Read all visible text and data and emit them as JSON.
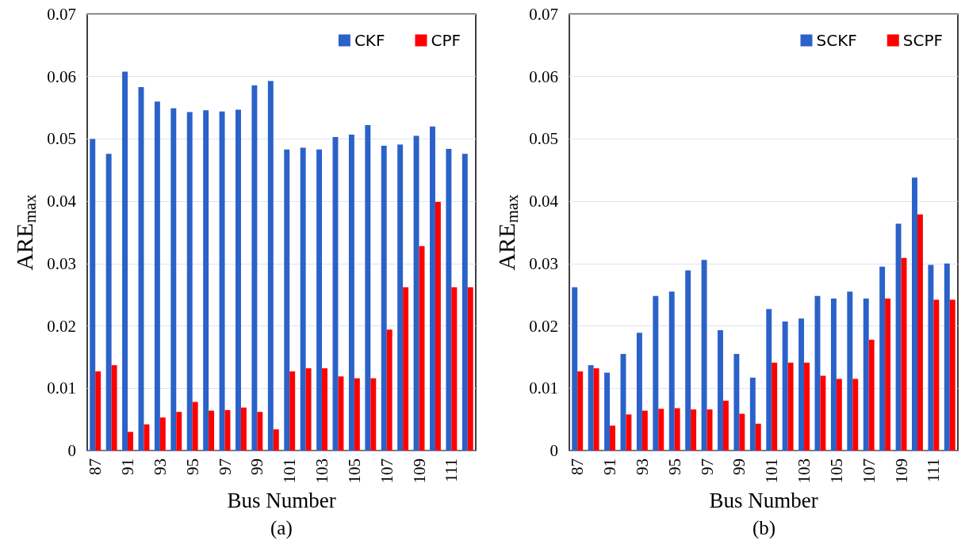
{
  "chart_data": [
    {
      "type": "bar",
      "categories": [
        "87",
        null,
        "91",
        null,
        "93",
        null,
        "95",
        null,
        "97",
        null,
        "99",
        null,
        "101",
        null,
        "103",
        null,
        "105",
        null,
        "107",
        null,
        "109",
        null,
        "111",
        null
      ],
      "series": [
        {
          "name": "CKF",
          "color": "#2b62c9",
          "values": [
            0.05,
            0.0476,
            0.0608,
            0.0583,
            0.056,
            0.0549,
            0.0543,
            0.0546,
            0.0544,
            0.0547,
            0.0586,
            0.0593,
            0.0483,
            0.0486,
            0.0483,
            0.0503,
            0.0507,
            0.0522,
            0.0489,
            0.0491,
            0.0505,
            0.052,
            0.0484,
            0.0476
          ]
        },
        {
          "name": "CPF",
          "color": "#ff0000",
          "values": [
            0.0127,
            0.0137,
            0.003,
            0.0042,
            0.0053,
            0.0062,
            0.0078,
            0.0064,
            0.0065,
            0.0069,
            0.0062,
            0.0034,
            0.0127,
            0.0132,
            0.0132,
            0.0119,
            0.0116,
            0.0116,
            0.0194,
            0.0262,
            0.0328,
            0.0399,
            0.0262,
            0.0262
          ]
        }
      ],
      "xlabel": "Bus Number",
      "ylabel": "ARE$_{max}$",
      "ylim": [
        0,
        0.07
      ],
      "yticks": [
        0,
        0.01,
        0.02,
        0.03,
        0.04,
        0.05,
        0.06,
        0.07
      ],
      "grid": "y",
      "legend": "top right",
      "annotations": [
        "(a)"
      ]
    },
    {
      "type": "bar",
      "categories": [
        "87",
        null,
        "91",
        null,
        "93",
        null,
        "95",
        null,
        "97",
        null,
        "99",
        null,
        "101",
        null,
        "103",
        null,
        "105",
        null,
        "107",
        null,
        "109",
        null,
        "111",
        null
      ],
      "series": [
        {
          "name": "SCKF",
          "color": "#2b62c9",
          "values": [
            0.0262,
            0.0137,
            0.0125,
            0.0155,
            0.0189,
            0.0248,
            0.0255,
            0.0289,
            0.0306,
            0.0193,
            0.0155,
            0.0117,
            0.0227,
            0.0207,
            0.0212,
            0.0248,
            0.0244,
            0.0255,
            0.0244,
            0.0295,
            0.0364,
            0.0438,
            0.0298,
            0.03
          ]
        },
        {
          "name": "SCPF",
          "color": "#ff0000",
          "values": [
            0.0127,
            0.0132,
            0.004,
            0.0058,
            0.0064,
            0.0067,
            0.0068,
            0.0066,
            0.0066,
            0.008,
            0.0059,
            0.0043,
            0.0141,
            0.0141,
            0.0141,
            0.012,
            0.0115,
            0.0115,
            0.0178,
            0.0244,
            0.0309,
            0.0379,
            0.0242,
            0.0242
          ]
        }
      ],
      "xlabel": "Bus Number",
      "ylabel": "ARE$_{max}$",
      "ylim": [
        0,
        0.07
      ],
      "yticks": [
        0,
        0.01,
        0.02,
        0.03,
        0.04,
        0.05,
        0.06,
        0.07
      ],
      "grid": "y",
      "legend": "top right",
      "annotations": [
        "(b)"
      ]
    }
  ]
}
